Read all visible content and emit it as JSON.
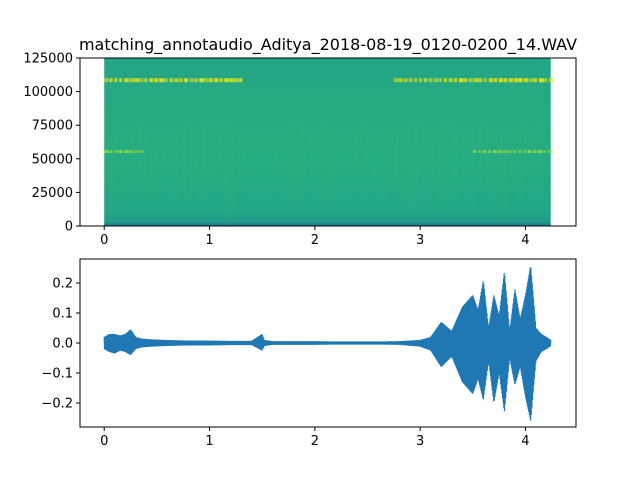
{
  "chart_data": [
    {
      "type": "heatmap",
      "title": "matching_annotaudio_Aditya_2018-08-19_0120-0200_14.WAV",
      "xlabel": "",
      "ylabel": "",
      "xlim": [
        -0.23,
        4.48
      ],
      "ylim": [
        0,
        125000
      ],
      "x_ticks": [
        0,
        1,
        2,
        3,
        4
      ],
      "x_tick_labels": [
        "0",
        "1",
        "2",
        "3",
        "4"
      ],
      "y_ticks": [
        0,
        25000,
        50000,
        75000,
        100000,
        125000
      ],
      "y_tick_labels": [
        "0",
        "25000",
        "50000",
        "75000",
        "100000",
        "125000"
      ],
      "time_range": [
        0,
        4.24
      ],
      "freq_range": [
        0,
        125000
      ],
      "colormap": "viridis",
      "bands": [
        {
          "freq": 108500,
          "time_segments": [
            [
              0.0,
              1.3
            ],
            [
              2.75,
              4.24
            ]
          ],
          "intensity": "high"
        },
        {
          "freq": 55000,
          "time_segments": [
            [
              0.0,
              0.35
            ],
            [
              3.5,
              4.24
            ]
          ],
          "intensity": "medium"
        },
        {
          "freq": 2000,
          "time_segments": [
            [
              0.0,
              4.24
            ]
          ],
          "intensity": "low"
        }
      ],
      "grid": false,
      "colors": {
        "background": "#26a883",
        "band": "#dde318",
        "band_mid": "#8fd744",
        "low": "#2d708e"
      }
    },
    {
      "type": "line",
      "title": "",
      "xlabel": "",
      "ylabel": "",
      "xlim": [
        -0.23,
        4.48
      ],
      "ylim": [
        -0.28,
        0.28
      ],
      "x_ticks": [
        0,
        1,
        2,
        3,
        4
      ],
      "x_tick_labels": [
        "0",
        "1",
        "2",
        "3",
        "4"
      ],
      "y_ticks": [
        -0.2,
        -0.1,
        0.0,
        0.1,
        0.2
      ],
      "y_tick_labels": [
        "−0.2",
        "−0.1",
        "0.0",
        "0.1",
        "0.2"
      ],
      "series_color": "#1f77b4",
      "grid": false,
      "envelope": {
        "x": [
          0.0,
          0.05,
          0.1,
          0.15,
          0.2,
          0.25,
          0.3,
          0.35,
          0.45,
          0.6,
          0.8,
          1.0,
          1.2,
          1.4,
          1.5,
          1.52,
          1.6,
          1.8,
          2.0,
          2.2,
          2.4,
          2.6,
          2.8,
          3.0,
          3.1,
          3.2,
          3.3,
          3.4,
          3.5,
          3.55,
          3.6,
          3.65,
          3.7,
          3.75,
          3.8,
          3.85,
          3.9,
          3.95,
          4.0,
          4.05,
          4.1,
          4.15,
          4.2,
          4.24
        ],
        "upper": [
          0.02,
          0.03,
          0.03,
          0.025,
          0.03,
          0.045,
          0.02,
          0.015,
          0.012,
          0.01,
          0.008,
          0.008,
          0.007,
          0.007,
          0.03,
          0.01,
          0.006,
          0.006,
          0.006,
          0.005,
          0.005,
          0.005,
          0.006,
          0.01,
          0.02,
          0.07,
          0.04,
          0.12,
          0.16,
          0.11,
          0.21,
          0.05,
          0.16,
          0.09,
          0.24,
          0.04,
          0.18,
          0.08,
          0.16,
          0.26,
          0.05,
          0.03,
          0.02,
          0.01
        ],
        "lower": [
          -0.02,
          -0.03,
          -0.035,
          -0.025,
          -0.03,
          -0.04,
          -0.02,
          -0.015,
          -0.012,
          -0.01,
          -0.008,
          -0.008,
          -0.007,
          -0.007,
          -0.025,
          -0.01,
          -0.006,
          -0.006,
          -0.006,
          -0.005,
          -0.005,
          -0.005,
          -0.006,
          -0.012,
          -0.025,
          -0.08,
          -0.045,
          -0.13,
          -0.17,
          -0.12,
          -0.19,
          -0.06,
          -0.2,
          -0.1,
          -0.23,
          -0.05,
          -0.14,
          -0.08,
          -0.18,
          -0.26,
          -0.06,
          -0.03,
          -0.02,
          -0.01
        ]
      }
    }
  ]
}
